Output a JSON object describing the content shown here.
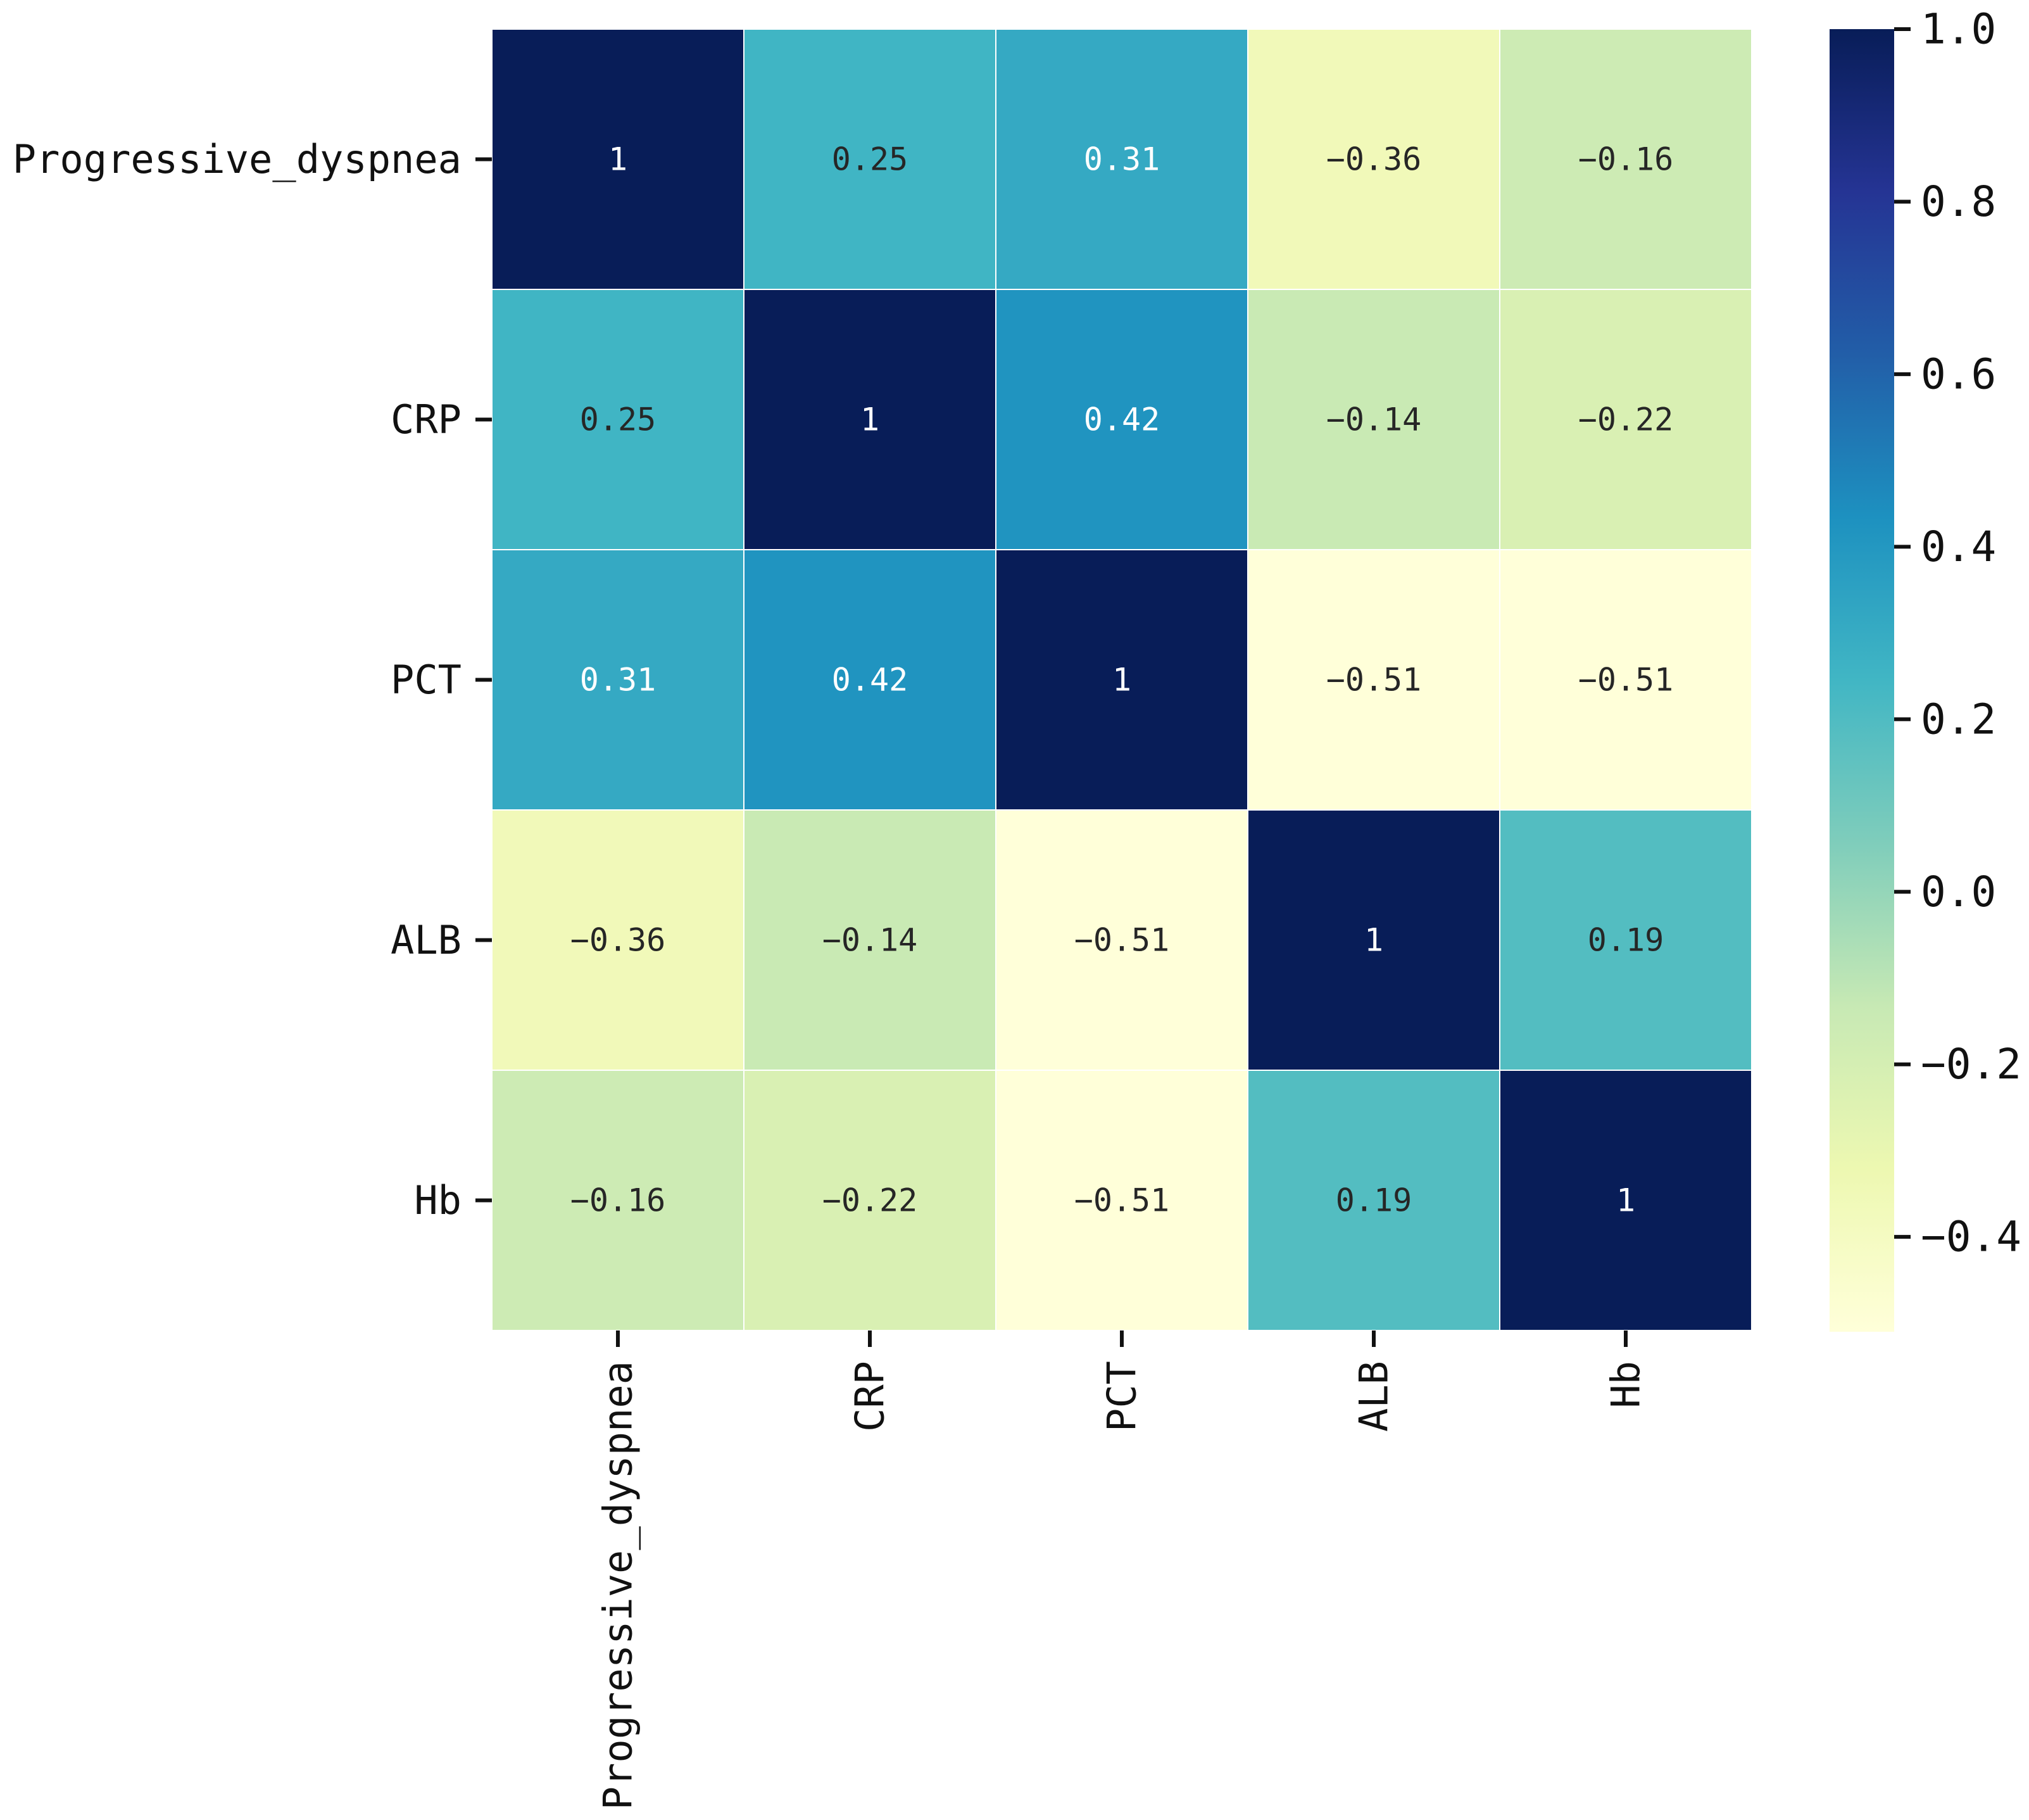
{
  "chart_data": {
    "type": "heatmap",
    "title": "",
    "xlabel": "",
    "ylabel": "",
    "x_categories": [
      "Progressive_dyspnea",
      "CRP",
      "PCT",
      "ALB",
      "Hb"
    ],
    "y_categories": [
      "Progressive_dyspnea",
      "CRP",
      "PCT",
      "ALB",
      "Hb"
    ],
    "values": [
      [
        1,
        0.25,
        0.31,
        -0.36,
        -0.16
      ],
      [
        0.25,
        1,
        0.42,
        -0.14,
        -0.22
      ],
      [
        0.31,
        0.42,
        1,
        -0.51,
        -0.51
      ],
      [
        -0.36,
        -0.14,
        -0.51,
        1,
        0.19
      ],
      [
        -0.16,
        -0.22,
        -0.51,
        0.19,
        1
      ]
    ],
    "annotations": [
      [
        "1",
        "0.25",
        "0.31",
        "-0.36",
        "-0.16"
      ],
      [
        "0.25",
        "1",
        "0.42",
        "-0.14",
        "-0.22"
      ],
      [
        "0.31",
        "0.42",
        "1",
        "-0.51",
        "-0.51"
      ],
      [
        "-0.36",
        "-0.14",
        "-0.51",
        "1",
        "0.19"
      ],
      [
        "-0.16",
        "-0.22",
        "-0.51",
        "0.19",
        "1"
      ]
    ],
    "colormap": "YlGnBu",
    "colorbar": {
      "range": [
        -0.51,
        1.0
      ],
      "ticks": [
        1.0,
        0.8,
        0.6,
        0.4,
        0.2,
        0.0,
        -0.2,
        -0.4
      ],
      "tick_labels": [
        "1.0",
        "0.8",
        "0.6",
        "0.4",
        "0.2",
        "0.0",
        "−0.2",
        "−0.4"
      ]
    },
    "colorscale_stops": [
      "#ffffd9",
      "#edf8b1",
      "#c7e9b4",
      "#7fcdbb",
      "#41b6c4",
      "#1d91c0",
      "#225ea8",
      "#253494",
      "#081d58"
    ],
    "grid": false,
    "cell_separator_color": "#ffffff",
    "legend": "colorbar-right"
  }
}
